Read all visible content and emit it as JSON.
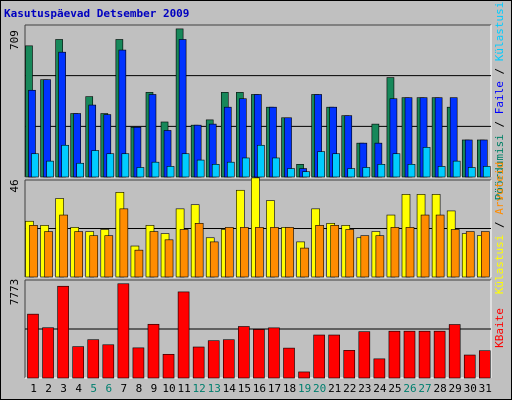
{
  "title": "Kasutuspäevad Detsember 2009",
  "colors": {
    "pageviews": "#17885a",
    "files": "#0033ff",
    "hits": "#00ccff",
    "visits": "#ffff00",
    "sites": "#ff8c00",
    "kbytes": "#ff0000",
    "weekday_label": "#000000",
    "weekend_label": "#007f6e",
    "panel_bg": "#c0c0c0"
  },
  "right_labels": {
    "top": [
      {
        "text": "Pöördumisi",
        "color": "#008066"
      },
      {
        "text": " / ",
        "color": "#000000"
      },
      {
        "text": "Faile",
        "color": "#0000ff"
      },
      {
        "text": " / ",
        "color": "#000000"
      },
      {
        "text": "Külastusi",
        "color": "#00ccff"
      }
    ],
    "middle": [
      {
        "text": "Külastusi",
        "color": "#ffff00"
      },
      {
        "text": " / ",
        "color": "#000000"
      },
      {
        "text": "Arvuteid",
        "color": "#ff8c00"
      }
    ],
    "bottom": [
      {
        "text": "KBaite",
        "color": "#ff0000"
      }
    ]
  },
  "chart_data": [
    {
      "type": "bar",
      "panel": "top",
      "ymax_label": "709",
      "ylim": [
        0,
        709
      ],
      "categories": [
        "1",
        "2",
        "3",
        "4",
        "5",
        "6",
        "7",
        "8",
        "9",
        "10",
        "11",
        "12",
        "13",
        "14",
        "15",
        "16",
        "17",
        "18",
        "19",
        "20",
        "21",
        "22",
        "23",
        "24",
        "25",
        "26",
        "27",
        "28",
        "29",
        "30",
        "31"
      ],
      "weekend": [
        "5",
        "6",
        "12",
        "13",
        "19",
        "20",
        "26",
        "27"
      ],
      "series": [
        {
          "key": "pageviews",
          "values": [
            620,
            460,
            650,
            300,
            380,
            300,
            650,
            235,
            400,
            260,
            700,
            245,
            270,
            400,
            400,
            390,
            330,
            280,
            60,
            390,
            330,
            290,
            160,
            250,
            470,
            375,
            375,
            375,
            330,
            175,
            175
          ]
        },
        {
          "key": "files",
          "values": [
            410,
            460,
            590,
            300,
            340,
            295,
            600,
            235,
            390,
            220,
            650,
            245,
            250,
            330,
            370,
            390,
            330,
            280,
            40,
            390,
            330,
            290,
            160,
            160,
            370,
            375,
            375,
            375,
            375,
            175,
            175
          ]
        },
        {
          "key": "hits",
          "values": [
            110,
            75,
            150,
            65,
            125,
            110,
            110,
            45,
            70,
            50,
            110,
            80,
            60,
            70,
            90,
            150,
            90,
            40,
            25,
            120,
            110,
            40,
            45,
            60,
            110,
            60,
            140,
            50,
            75,
            45,
            50
          ]
        }
      ]
    },
    {
      "type": "bar",
      "panel": "middle",
      "ymax_label": "46",
      "ylim": [
        0,
        46
      ],
      "categories": [
        "1",
        "2",
        "3",
        "4",
        "5",
        "6",
        "7",
        "8",
        "9",
        "10",
        "11",
        "12",
        "13",
        "14",
        "15",
        "16",
        "17",
        "18",
        "19",
        "20",
        "21",
        "22",
        "23",
        "24",
        "25",
        "26",
        "27",
        "28",
        "29",
        "30",
        "31"
      ],
      "series": [
        {
          "key": "visits",
          "values": [
            27,
            25,
            38,
            24,
            22,
            23,
            41,
            15,
            25,
            21,
            33,
            35,
            19,
            23,
            42,
            48,
            37,
            24,
            17,
            33,
            26,
            25,
            19,
            22,
            30,
            40,
            40,
            40,
            32,
            21,
            20
          ]
        },
        {
          "key": "sites",
          "values": [
            25,
            22,
            30,
            22,
            20,
            20,
            33,
            13,
            22,
            18,
            23,
            26,
            17,
            24,
            24,
            24,
            24,
            24,
            14,
            25,
            25,
            23,
            20,
            20,
            24,
            24,
            30,
            30,
            23,
            22,
            22
          ]
        }
      ]
    },
    {
      "type": "bar",
      "panel": "bottom",
      "ymax_label": "7773",
      "ylim": [
        0,
        7773
      ],
      "categories": [
        "1",
        "2",
        "3",
        "4",
        "5",
        "6",
        "7",
        "8",
        "9",
        "10",
        "11",
        "12",
        "13",
        "14",
        "15",
        "16",
        "17",
        "18",
        "19",
        "20",
        "21",
        "22",
        "23",
        "24",
        "25",
        "26",
        "27",
        "28",
        "29",
        "30",
        "31"
      ],
      "series": [
        {
          "key": "kbytes",
          "values": [
            5170,
            4070,
            7430,
            2540,
            3100,
            2690,
            7630,
            2440,
            4350,
            1920,
            6970,
            2510,
            3020,
            3100,
            4170,
            3930,
            4060,
            2420,
            490,
            3480,
            3480,
            2240,
            3750,
            1550,
            3790,
            3790,
            3790,
            3790,
            4330,
            1860,
            2210
          ]
        }
      ]
    }
  ]
}
